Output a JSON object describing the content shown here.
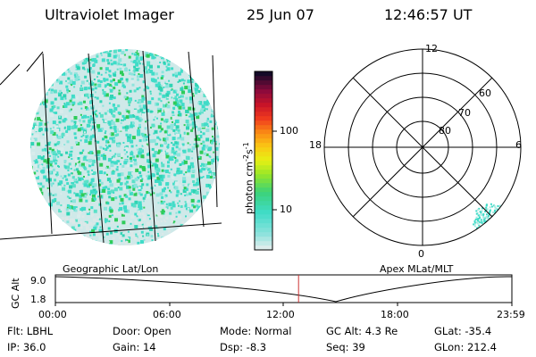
{
  "header": {
    "instrument": "Ultraviolet Imager",
    "date": "25 Jun 07",
    "time": "12:46:57 UT"
  },
  "colorbar": {
    "tick_labels": [
      "100",
      "10"
    ],
    "unit_main": "photon cm",
    "unit_sup1": "-2",
    "unit_s": "s",
    "unit_sup2": "-1"
  },
  "polar": {
    "mlt_labels": {
      "top": "12",
      "left": "18",
      "right": "6",
      "bottom": "0"
    },
    "lat_labels": [
      "60",
      "70",
      "80"
    ]
  },
  "timeline": {
    "left_title": "Geographic Lat/Lon",
    "right_title": "Apex MLat/MLT",
    "ylabel": "GC Alt",
    "y_top": "9.0",
    "y_bottom": "1.8",
    "x_ticks": [
      "00:00",
      "06:00",
      "12:00",
      "18:00",
      "23:59"
    ],
    "current_time_fraction": 0.5326,
    "current_color": "#cc3333"
  },
  "info": {
    "flt": "Flt: LBHL",
    "ip": "IP: 36.0",
    "door": "Door: Open",
    "gain": "Gain: 14",
    "mode": "Mode: Normal",
    "dsp": "Dsp:    -8.3",
    "gcalt": "GC Alt: 4.3 Re",
    "seq": "Seq: 39",
    "glat": "GLat: -35.4",
    "glon": "GLon: 212.4"
  },
  "colors": {
    "cyan_main": "#40dcc8",
    "green_speck": "#2ecc5a",
    "ground": "#e2ecec"
  }
}
